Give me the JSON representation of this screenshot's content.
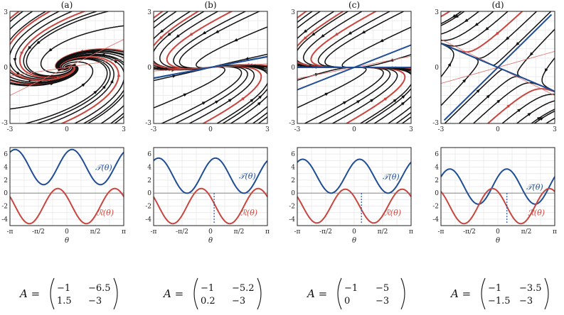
{
  "panels": [
    {
      "letter": "(a)",
      "matrix": [
        [
          "-1",
          "-6.5"
        ],
        [
          "1.5",
          "-3"
        ]
      ],
      "eig_real": null,
      "eig_slow": null,
      "T_label": "𝒯(θ)",
      "R_label": "ℛ(θ)",
      "T_curve": {
        "mean": 4.0,
        "amp": 2.7,
        "phase": -0.57
      },
      "R_curve": {
        "mean": -2.0,
        "amp": 2.7,
        "phase": 1.0
      },
      "marker": null,
      "phase": {
        "vx": [
          -1,
          -6.5
        ],
        "vy": [
          1.5,
          -3
        ]
      }
    },
    {
      "letter": "(b)",
      "matrix": [
        [
          "-1",
          "-5.2"
        ],
        [
          "0.2",
          "-3"
        ]
      ],
      "eig_real": true,
      "eig_slow": 0.2,
      "T_label": "𝒯(θ)",
      "R_label": "ℛ(θ)",
      "T_curve": {
        "mean": 2.68,
        "amp": 2.7,
        "phase": -0.55
      },
      "R_curve": {
        "mean": -2.0,
        "amp": 2.7,
        "phase": 1.02
      },
      "marker": 0.2,
      "phase": {
        "vx": [
          -1,
          -5.2
        ],
        "vy": [
          0.2,
          -3
        ]
      }
    },
    {
      "letter": "(c)",
      "matrix": [
        [
          "-1",
          "-5"
        ],
        [
          "0",
          "-3"
        ]
      ],
      "eig_real": true,
      "eig_slow": 0.0,
      "T_label": "𝒯(θ)",
      "R_label": "ℛ(θ)",
      "T_curve": {
        "mean": 2.6,
        "amp": 2.6,
        "phase": -0.6
      },
      "R_curve": {
        "mean": -2.0,
        "amp": 2.6,
        "phase": 0.98
      },
      "marker": 0.4,
      "phase": {
        "vx": [
          -1,
          -5
        ],
        "vy": [
          0,
          -3
        ]
      }
    },
    {
      "letter": "(d)",
      "matrix": [
        [
          "-1",
          "-3.5"
        ],
        [
          "-1.5",
          "-3"
        ]
      ],
      "eig_real": true,
      "eig_slow": -0.58,
      "T_label": "𝒯(θ)",
      "R_label": "ℛ(θ)",
      "T_curve": {
        "mean": 1.0,
        "amp": 2.7,
        "phase": -0.98
      },
      "R_curve": {
        "mean": -2.0,
        "amp": 2.7,
        "phase": 0.6
      },
      "marker": 0.5,
      "phase": {
        "vx": [
          -1,
          -3.5
        ],
        "vy": [
          -1.5,
          -3
        ]
      }
    }
  ],
  "phase_axes": {
    "xticks": [
      "-3",
      "0",
      "3"
    ],
    "yticks": [
      "3",
      "0",
      "-3"
    ],
    "range": [
      -3,
      3
    ]
  },
  "curve_axes": {
    "yticks": [
      "6",
      "4",
      "2",
      "0",
      "-2",
      "-4"
    ],
    "ylim": [
      -5,
      7
    ],
    "xticks": [
      "-π",
      "-π/2",
      "0",
      "π/2",
      "π"
    ],
    "xlabel": "θ"
  },
  "matrix_prefix": "A =",
  "colors": {
    "black": "#111111",
    "red": "#c8463f",
    "blue": "#1f4e96",
    "thin_red": "#e06f6a"
  }
}
